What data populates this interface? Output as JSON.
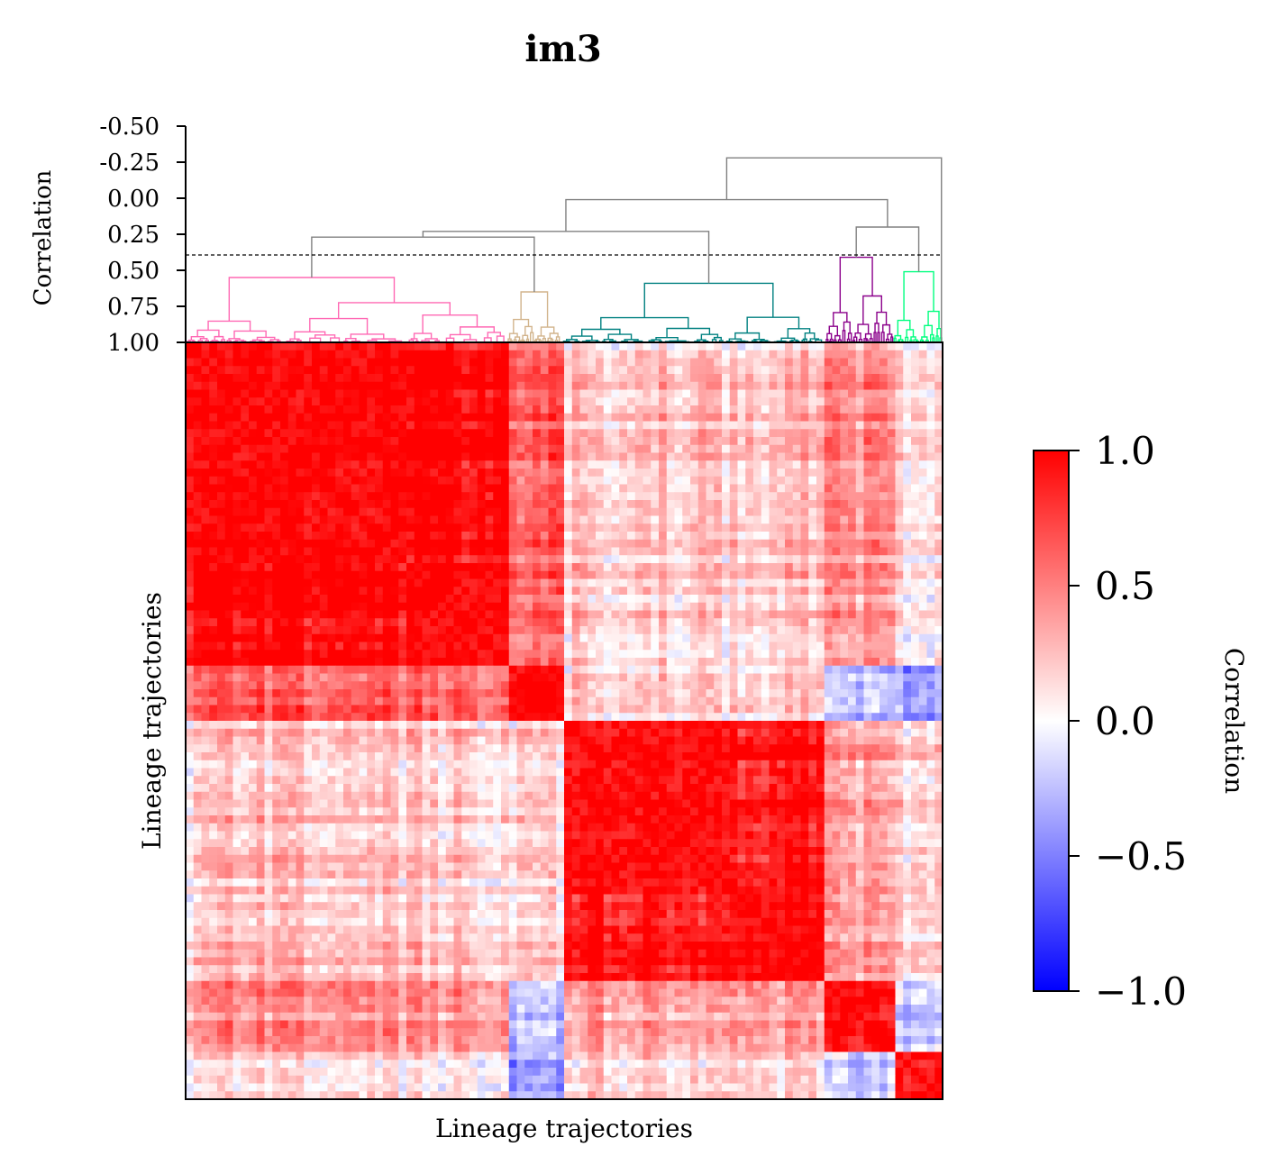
{
  "chart_data": [
    {
      "type": "dendrogram",
      "title": "im3",
      "ylabel": "Correlation",
      "yticks": [
        "-0.50",
        "-0.25",
        "0.00",
        "0.25",
        "0.50",
        "0.75",
        "1.00"
      ],
      "ylim": [
        1.0,
        -0.5
      ],
      "threshold": 0.39,
      "clusters": [
        {
          "color": "#ff69b4",
          "leaf_range": [
            0,
            0.425
          ],
          "merge_height": 0.55
        },
        {
          "color": "#d2b48c",
          "leaf_range": [
            0.425,
            0.495
          ],
          "merge_height": 0.65
        },
        {
          "color": "#008080",
          "leaf_range": [
            0.495,
            0.845
          ],
          "merge_height": 0.59
        },
        {
          "color": "#8b008b",
          "leaf_range": [
            0.845,
            0.935
          ],
          "merge_height": 0.41
        },
        {
          "color": "#00ff7f",
          "leaf_range": [
            0.935,
            1.0
          ],
          "merge_height": 0.51
        }
      ],
      "upper_links_color": "#808080",
      "upper_merges": [
        {
          "height": 0.27,
          "left": 0,
          "right": 1
        },
        {
          "height": 0.23,
          "left": "c01",
          "right": 2
        },
        {
          "height": 0.2,
          "left": 3,
          "right": 4
        },
        {
          "height": 0.01,
          "left": "c012",
          "right": "c34"
        },
        {
          "height": -0.28,
          "left": "c01234",
          "right": "outlier"
        }
      ]
    },
    {
      "type": "heatmap",
      "xlabel": "Lineage trajectories",
      "ylabel": "Lineage trajectories",
      "value_range": [
        -1.0,
        1.0
      ],
      "colormap": [
        "#0000ff",
        "#ffffff",
        "#ff0000"
      ],
      "block_sizes": [
        0.285,
        0.14,
        0.07,
        0.22,
        0.05,
        0.07,
        0.05,
        0.04,
        0.03,
        0.035
      ],
      "block_group": [
        0,
        0,
        1,
        2,
        2,
        2,
        3,
        3,
        4,
        4
      ],
      "group_correlation": [
        [
          0.95,
          0.55,
          0.2,
          0.4,
          0.1
        ],
        [
          0.55,
          0.85,
          0.15,
          -0.3,
          -0.4
        ],
        [
          0.2,
          0.15,
          0.95,
          0.35,
          0.2
        ],
        [
          0.4,
          -0.3,
          0.35,
          0.9,
          -0.2
        ],
        [
          0.1,
          -0.4,
          0.2,
          -0.2,
          0.85
        ]
      ],
      "diag_block_strength": 0.97
    },
    {
      "type": "colorbar",
      "label": "Correlation",
      "ticks": [
        "1.0",
        "0.5",
        "0.0",
        "−0.5",
        "−1.0"
      ],
      "tick_values": [
        1.0,
        0.5,
        0.0,
        -0.5,
        -1.0
      ],
      "range": [
        -1.0,
        1.0
      ]
    }
  ]
}
